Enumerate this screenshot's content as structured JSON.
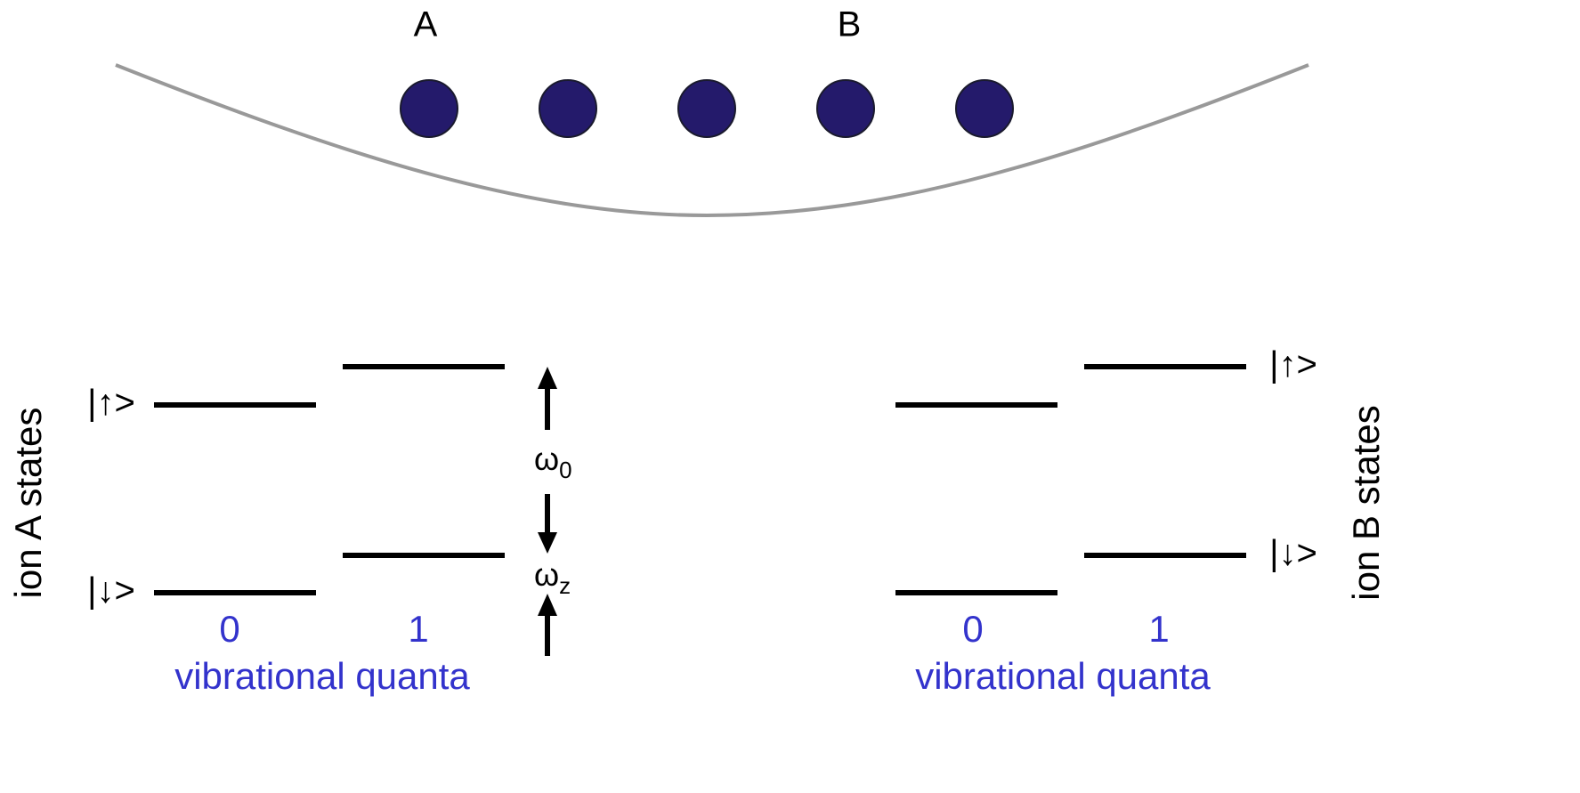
{
  "trap": {
    "ion_labels": [
      "A",
      "B"
    ]
  },
  "ion_a": {
    "side_label": "ion A states",
    "up_state": "|↑>",
    "down_state": "|↓>",
    "quanta": [
      "0",
      "1"
    ],
    "axis_label": "vibrational quanta"
  },
  "ion_b": {
    "side_label": "ion B states",
    "up_state": "|↑>",
    "down_state": "|↓>",
    "quanta": [
      "0",
      "1"
    ],
    "axis_label": "vibrational quanta"
  },
  "frequencies": {
    "omega_0": {
      "symbol": "ω",
      "subscript": "0"
    },
    "omega_z": {
      "symbol": "ω",
      "subscript": "z"
    }
  }
}
